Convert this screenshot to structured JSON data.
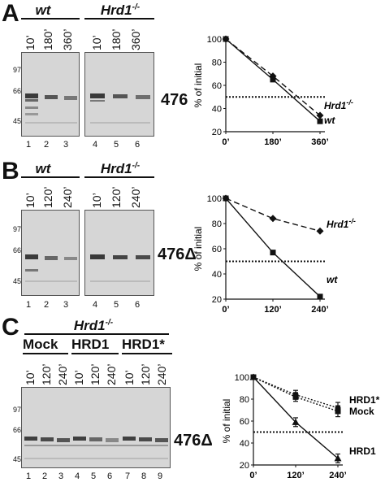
{
  "panels": [
    {
      "letter": "A",
      "genotypes": [
        "wt",
        "Hrd1",
        "-/-"
      ],
      "timepoints_left": [
        "10’",
        "180’",
        "360’"
      ],
      "timepoints_right": [
        "10’",
        "180’",
        "360’"
      ],
      "mw_markers": [
        "97",
        "66",
        "45"
      ],
      "lanes": [
        "1",
        "2",
        "3",
        "4",
        "5",
        "6"
      ],
      "construct": "476"
    },
    {
      "letter": "B",
      "genotypes": [
        "wt",
        "Hrd1",
        "-/-"
      ],
      "timepoints_left": [
        "10’",
        "120’",
        "240’"
      ],
      "timepoints_right": [
        "10’",
        "120’",
        "240’"
      ],
      "mw_markers": [
        "97",
        "66",
        "45"
      ],
      "lanes": [
        "1",
        "2",
        "3",
        "4",
        "5",
        "6"
      ],
      "construct": "476Δ"
    },
    {
      "letter": "C",
      "genotype": "Hrd1",
      "genotype_sup": "-/-",
      "conditions": [
        "Mock",
        "HRD1",
        "HRD1*"
      ],
      "timepoints": [
        "10’",
        "120’",
        "240’",
        "10’",
        "120’",
        "240’",
        "10’",
        "120’",
        "240’"
      ],
      "mw_markers": [
        "97",
        "66",
        "45"
      ],
      "lanes": [
        "1",
        "2",
        "3",
        "4",
        "5",
        "6",
        "7",
        "8",
        "9"
      ],
      "construct": "476Δ"
    }
  ],
  "chart_data": [
    {
      "type": "line",
      "panel": "A",
      "ylabel": "% of initial",
      "x_tick_labels": [
        "0’",
        "180’",
        "360’"
      ],
      "x": [
        0,
        180,
        360
      ],
      "ylim": [
        20,
        100
      ],
      "y_ticks": [
        "100",
        "80",
        "60",
        "40",
        "20"
      ],
      "reference_line": 50,
      "series": [
        {
          "name": "Hrd1",
          "name_sup": "-/-",
          "style": "dashed",
          "marker": "diamond",
          "values": [
            100,
            68,
            34
          ]
        },
        {
          "name": "wt",
          "style": "solid",
          "marker": "square",
          "values": [
            100,
            65,
            29
          ]
        }
      ]
    },
    {
      "type": "line",
      "panel": "B",
      "ylabel": "% of initial",
      "x_tick_labels": [
        "0’",
        "120’",
        "240’"
      ],
      "x": [
        0,
        120,
        240
      ],
      "ylim": [
        20,
        100
      ],
      "y_ticks": [
        "100",
        "80",
        "60",
        "40",
        "20"
      ],
      "reference_line": 50,
      "series": [
        {
          "name": "Hrd1",
          "name_sup": "-/-",
          "style": "dashed",
          "marker": "diamond",
          "values": [
            100,
            84,
            74
          ]
        },
        {
          "name": "wt",
          "style": "solid",
          "marker": "square",
          "values": [
            100,
            57,
            22
          ]
        }
      ]
    },
    {
      "type": "line",
      "panel": "C",
      "ylabel": "% of initial",
      "x_tick_labels": [
        "0’",
        "120’",
        "240’"
      ],
      "x": [
        0,
        120,
        240
      ],
      "ylim": [
        20,
        100
      ],
      "y_ticks": [
        "100",
        "80",
        "60",
        "40",
        "20"
      ],
      "reference_line": 50,
      "series": [
        {
          "name": "HRD1*",
          "style": "dotted",
          "marker": "circle",
          "values": [
            100,
            84,
            72
          ],
          "errors": [
            2,
            4,
            5
          ]
        },
        {
          "name": "Mock",
          "style": "dotted",
          "marker": "square",
          "values": [
            100,
            82,
            69
          ],
          "errors": [
            2,
            4,
            5
          ]
        },
        {
          "name": "HRD1",
          "style": "solid",
          "marker": "triangle",
          "values": [
            100,
            59,
            26
          ],
          "errors": [
            2,
            4,
            4
          ]
        }
      ]
    }
  ]
}
